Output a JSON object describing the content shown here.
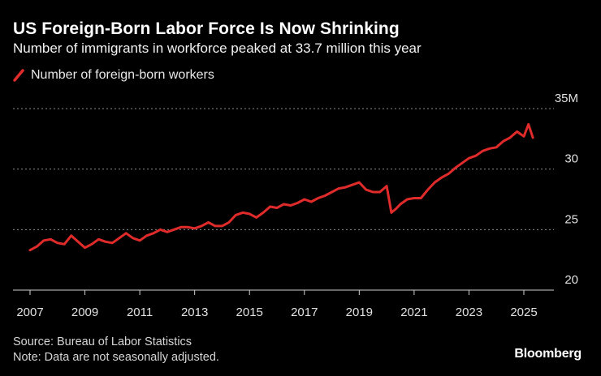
{
  "header": {
    "title": "US Foreign-Born Labor Force Is Now Shrinking",
    "subtitle": "Number of immigrants in workforce peaked at 33.7 million this year"
  },
  "legend": {
    "label": "Number of foreign-born workers",
    "color": "#e02b2b"
  },
  "footer": {
    "source": "Source: Bureau of Labor Statistics",
    "note": "Note: Data are not seasonally adjusted.",
    "brand": "Bloomberg"
  },
  "chart_data": {
    "type": "line",
    "title": "US Foreign-Born Labor Force Is Now Shrinking",
    "subtitle": "Number of immigrants in workforce peaked at 33.7 million this year",
    "xlabel": "",
    "ylabel": "",
    "xlim": [
      2007.0,
      2026.5
    ],
    "ylim": [
      20,
      35
    ],
    "grid": true,
    "legend_position": "top-left",
    "x_ticks": [
      {
        "value": 2007,
        "label": "2007"
      },
      {
        "value": 2009,
        "label": "2009"
      },
      {
        "value": 2011,
        "label": "2011"
      },
      {
        "value": 2013,
        "label": "2013"
      },
      {
        "value": 2015,
        "label": "2015"
      },
      {
        "value": 2017,
        "label": "2017"
      },
      {
        "value": 2019,
        "label": "2019"
      },
      {
        "value": 2021,
        "label": "2021"
      },
      {
        "value": 2023,
        "label": "2023"
      },
      {
        "value": 2025,
        "label": "2025"
      }
    ],
    "y_ticks": [
      {
        "value": 20,
        "label": "20"
      },
      {
        "value": 25,
        "label": "25"
      },
      {
        "value": 30,
        "label": "30"
      },
      {
        "value": 35,
        "label": "35M"
      }
    ],
    "series": [
      {
        "name": "Number of foreign-born workers",
        "color": "#e02b2b",
        "x": [
          2007.0,
          2007.25,
          2007.5,
          2007.75,
          2008.0,
          2008.25,
          2008.5,
          2008.75,
          2009.0,
          2009.25,
          2009.5,
          2009.75,
          2010.0,
          2010.25,
          2010.5,
          2010.75,
          2011.0,
          2011.25,
          2011.5,
          2011.75,
          2012.0,
          2012.25,
          2012.5,
          2012.75,
          2013.0,
          2013.25,
          2013.5,
          2013.75,
          2014.0,
          2014.25,
          2014.5,
          2014.75,
          2015.0,
          2015.25,
          2015.5,
          2015.75,
          2016.0,
          2016.25,
          2016.5,
          2016.75,
          2017.0,
          2017.25,
          2017.5,
          2017.75,
          2018.0,
          2018.25,
          2018.5,
          2018.75,
          2019.0,
          2019.25,
          2019.5,
          2019.75,
          2020.0,
          2020.17,
          2020.33,
          2020.5,
          2020.75,
          2021.0,
          2021.25,
          2021.5,
          2021.75,
          2022.0,
          2022.25,
          2022.5,
          2022.75,
          2023.0,
          2023.25,
          2023.5,
          2023.75,
          2024.0,
          2024.25,
          2024.5,
          2024.75,
          2025.0,
          2025.17,
          2025.33
        ],
        "values": [
          23.3,
          23.6,
          24.1,
          24.2,
          23.9,
          23.8,
          24.5,
          24.0,
          23.5,
          23.8,
          24.2,
          24.0,
          23.9,
          24.3,
          24.7,
          24.3,
          24.1,
          24.5,
          24.7,
          25.0,
          24.8,
          25.0,
          25.2,
          25.2,
          25.1,
          25.3,
          25.6,
          25.3,
          25.3,
          25.6,
          26.2,
          26.4,
          26.3,
          26.0,
          26.4,
          26.9,
          26.8,
          27.1,
          27.0,
          27.2,
          27.5,
          27.3,
          27.6,
          27.8,
          28.1,
          28.4,
          28.5,
          28.7,
          28.9,
          28.3,
          28.1,
          28.1,
          28.6,
          26.4,
          26.7,
          27.1,
          27.5,
          27.6,
          27.6,
          28.3,
          28.9,
          29.3,
          29.6,
          30.1,
          30.5,
          30.9,
          31.1,
          31.5,
          31.7,
          31.8,
          32.3,
          32.6,
          33.1,
          32.7,
          33.7,
          32.6
        ]
      }
    ]
  }
}
